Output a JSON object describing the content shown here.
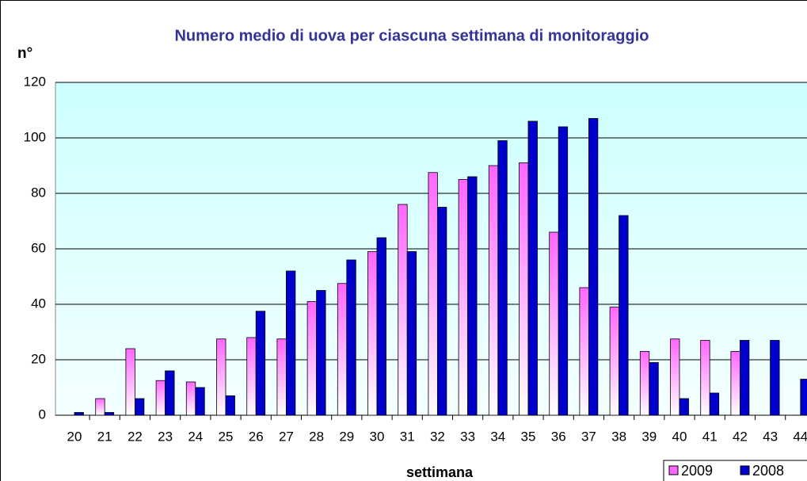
{
  "chart_data": {
    "type": "bar",
    "title": "Numero medio di uova per ciascuna settimana di monitoraggio",
    "ylabel": "n°",
    "xlabel": "settimana",
    "categories": [
      "20",
      "21",
      "22",
      "23",
      "24",
      "25",
      "26",
      "27",
      "28",
      "29",
      "30",
      "31",
      "32",
      "33",
      "34",
      "35",
      "36",
      "37",
      "38",
      "39",
      "40",
      "41",
      "42",
      "43",
      "44"
    ],
    "series": [
      {
        "name": "2009",
        "color": "#ff66ff",
        "values": [
          0,
          6,
          24,
          12.5,
          12,
          27.5,
          28,
          27.5,
          41,
          47.5,
          59,
          76,
          87.5,
          85,
          90,
          91,
          66,
          46,
          39,
          23,
          27.5,
          27,
          23,
          null,
          null
        ]
      },
      {
        "name": "2008",
        "color": "#0000cc",
        "values": [
          1,
          1,
          6,
          16,
          10,
          7,
          37.5,
          52,
          45,
          56,
          64,
          59,
          75,
          86,
          99,
          106,
          104,
          107,
          72,
          19,
          6,
          8,
          27,
          27,
          13
        ]
      }
    ],
    "ylim": [
      0,
      120
    ],
    "yticks": [
      0,
      20,
      40,
      60,
      80,
      100,
      120
    ],
    "grid": true,
    "legend": "bottom-right"
  }
}
